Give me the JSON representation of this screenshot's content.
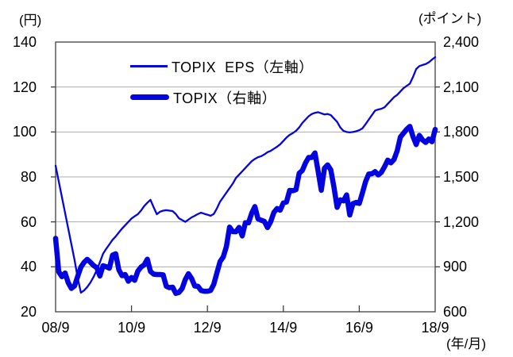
{
  "chart_data": {
    "type": "line",
    "title": "",
    "left_axis": {
      "unit_label": "(円)",
      "min": 20,
      "max": 140,
      "step": 20,
      "tick_labels": [
        "140",
        "120",
        "100",
        "80",
        "60",
        "40",
        "20"
      ]
    },
    "right_axis": {
      "unit_label": "(ポイント)",
      "min": 600,
      "max": 2400,
      "step": 300,
      "tick_labels": [
        "2,400",
        "2,100",
        "1,800",
        "1,500",
        "1,200",
        "900",
        "600"
      ]
    },
    "x_axis": {
      "unit_label": "(年/月)",
      "tick_labels": [
        "08/9",
        "10/9",
        "12/9",
        "14/9",
        "16/9",
        "18/9"
      ],
      "range": "2008/9 to 2018/9, monthly"
    },
    "legend": [
      {
        "label": "TOPIX  EPS（左軸）",
        "marker": "thin-line"
      },
      {
        "label": "TOPIX（右軸）",
        "marker": "thick-line"
      }
    ],
    "grid": "horizontal-only",
    "legend_position": "top-inside",
    "colors": {
      "line_blue": "#0404e0",
      "grid": "#adadad",
      "axis": "#404040",
      "text": "#000000",
      "background": "#ffffff"
    },
    "series": [
      {
        "name": "TOPIX EPS（左軸）",
        "axis": "left",
        "style": "thin",
        "values": [
          85,
          78,
          71,
          64,
          57,
          50,
          43,
          35,
          28.5,
          29.5,
          31,
          33,
          35.5,
          38.5,
          42,
          45.8,
          48,
          50,
          52,
          53.5,
          55.3,
          57,
          58.5,
          60,
          61.5,
          62.5,
          63.4,
          65,
          67,
          68.5,
          69.8,
          66.5,
          63.4,
          64.5,
          65,
          65.2,
          65,
          64.8,
          63.5,
          61.6,
          60.8,
          60,
          61,
          62,
          62.7,
          63.5,
          64.1,
          63.6,
          63.2,
          62.7,
          63.5,
          66,
          69,
          71,
          73,
          75,
          77,
          79.5,
          81,
          82.5,
          84,
          85.5,
          87,
          88,
          88.8,
          89.2,
          90,
          91,
          91.6,
          92.5,
          93.4,
          94.5,
          96,
          97.5,
          98.7,
          99.5,
          100.5,
          102,
          104,
          105.5,
          107,
          108,
          108.5,
          108.8,
          108.3,
          107.8,
          108,
          107.5,
          106,
          104.5,
          102,
          100.5,
          100,
          99.8,
          100,
          100.3,
          100.8,
          101.6,
          103.5,
          105.5,
          107.5,
          109.5,
          110,
          110.3,
          111,
          112.5,
          114,
          115.5,
          116.5,
          118,
          119.5,
          120.5,
          121.5,
          124.5,
          128,
          129.3,
          129.8,
          130.2,
          131,
          132.2,
          133.3
        ]
      },
      {
        "name": "TOPIX（右軸）",
        "axis": "right",
        "style": "thick",
        "values": [
          1090,
          867,
          834,
          859,
          794,
          756,
          773,
          837,
          898,
          930,
          950,
          931,
          909,
          895,
          839,
          907,
          901,
          891,
          978,
          987,
          880,
          841,
          849,
          804,
          829,
          810,
          871,
          898,
          913,
          951,
          869,
          851,
          849,
          849,
          846,
          770,
          761,
          764,
          723,
          729,
          755,
          815,
          854,
          822,
          772,
          770,
          742,
          737,
          737,
          742,
          783,
          860,
          935,
          966,
          1035,
          1165,
          1135,
          1134,
          1163,
          1106,
          1194,
          1194,
          1258,
          1302,
          1220,
          1211,
          1203,
          1162,
          1201,
          1263,
          1289,
          1278,
          1326,
          1333,
          1410,
          1408,
          1415,
          1524,
          1543,
          1593,
          1630,
          1630,
          1660,
          1537,
          1411,
          1558,
          1580,
          1547,
          1432,
          1297,
          1347,
          1340,
          1380,
          1246,
          1322,
          1330,
          1323,
          1393,
          1469,
          1519,
          1521,
          1535,
          1513,
          1531,
          1568,
          1612,
          1594,
          1617,
          1675,
          1766,
          1792,
          1818,
          1837,
          1768,
          1716,
          1777,
          1747,
          1730,
          1753,
          1735,
          1817
        ]
      }
    ]
  }
}
